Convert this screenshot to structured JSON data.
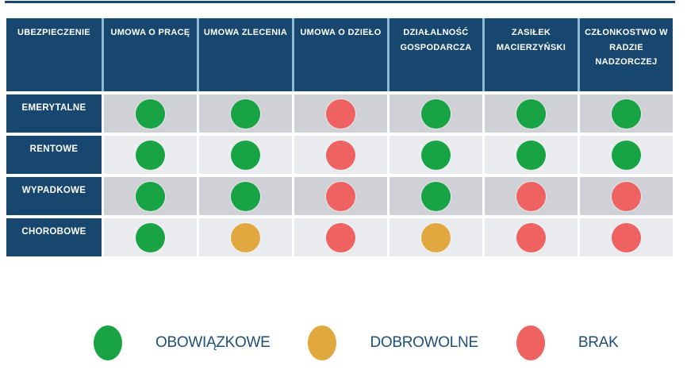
{
  "colors": {
    "navy": "#17476e",
    "header_divider": "#8fb7d2",
    "row_dark": "#cfd1d6",
    "row_light": "#eaebee",
    "green": "#18a344",
    "yellow": "#e0a83e",
    "red": "#ee6262",
    "legend_text": "#1f4e79"
  },
  "table": {
    "corner_header": "UBEZPIECZENIE",
    "column_headers": [
      "UMOWA O PRACĘ",
      "UMOWA ZLECENIA",
      "UMOWA O DZIEŁO",
      "DZIAŁALNOŚĆ GOSPODARCZA",
      "ZASIŁEK MACIERZYŃSKI",
      "CZŁONKOSTWO W RADZIE NADZORCZEJ"
    ],
    "rows": [
      {
        "label": "EMERYTALNE",
        "values": [
          "green",
          "green",
          "red",
          "green",
          "green",
          "green"
        ]
      },
      {
        "label": "RENTOWE",
        "values": [
          "green",
          "green",
          "red",
          "green",
          "green",
          "green"
        ]
      },
      {
        "label": "WYPADKOWE",
        "values": [
          "green",
          "green",
          "red",
          "green",
          "red",
          "red"
        ]
      },
      {
        "label": "CHOROBOWE",
        "values": [
          "green",
          "yellow",
          "red",
          "yellow",
          "red",
          "red"
        ]
      }
    ]
  },
  "legend": {
    "items": [
      {
        "label": "OBOWIĄZKOWE",
        "color": "green"
      },
      {
        "label": "DOBROWOLNE",
        "color": "yellow"
      },
      {
        "label": "BRAK",
        "color": "red"
      }
    ]
  },
  "chart_data": {
    "type": "table",
    "row_header": "UBEZPIECZENIE",
    "columns": [
      "UMOWA O PRACĘ",
      "UMOWA ZLECENIA",
      "UMOWA O DZIEŁO",
      "DZIAŁALNOŚĆ GOSPODARCZA",
      "ZASIŁEK MACIERZYŃSKI",
      "CZŁONKOSTWO W RADZIE NADZORCZEJ"
    ],
    "rows": [
      "EMERYTALNE",
      "RENTOWE",
      "WYPADKOWE",
      "CHOROBOWE"
    ],
    "values": [
      [
        "OBOWIĄZKOWE",
        "OBOWIĄZKOWE",
        "BRAK",
        "OBOWIĄZKOWE",
        "OBOWIĄZKOWE",
        "OBOWIĄZKOWE"
      ],
      [
        "OBOWIĄZKOWE",
        "OBOWIĄZKOWE",
        "BRAK",
        "OBOWIĄZKOWE",
        "OBOWIĄZKOWE",
        "OBOWIĄZKOWE"
      ],
      [
        "OBOWIĄZKOWE",
        "OBOWIĄZKOWE",
        "BRAK",
        "OBOWIĄZKOWE",
        "BRAK",
        "BRAK"
      ],
      [
        "OBOWIĄZKOWE",
        "DOBROWOLNE",
        "BRAK",
        "DOBROWOLNE",
        "BRAK",
        "BRAK"
      ]
    ],
    "legend": {
      "OBOWIĄZKOWE": "green",
      "DOBROWOLNE": "yellow",
      "BRAK": "red"
    },
    "legend_position": "bottom"
  }
}
